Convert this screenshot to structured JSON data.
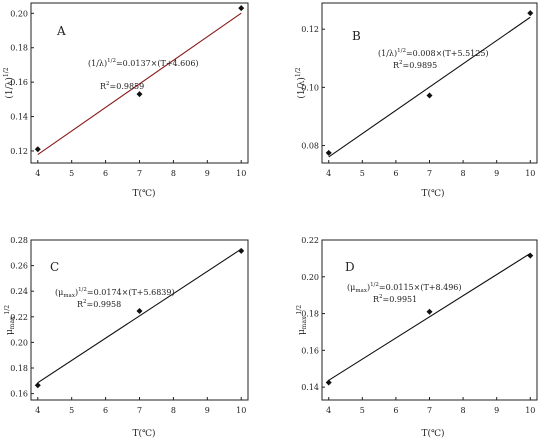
{
  "chart_data": [
    {
      "type": "scatter",
      "panel_label": "A",
      "x": [
        4,
        7,
        10
      ],
      "y": [
        0.121,
        0.153,
        0.203
      ],
      "xlim": [
        3.8,
        10.2
      ],
      "ylim": [
        0.113,
        0.206
      ],
      "xticks": [
        4,
        5,
        6,
        7,
        8,
        9,
        10
      ],
      "yticks": [
        0.12,
        0.14,
        0.16,
        0.18,
        0.2
      ],
      "xtick_labels": [
        "4",
        "5",
        "6",
        "7",
        "8",
        "9",
        "10"
      ],
      "ytick_labels": [
        "0.12",
        "0.14",
        "0.16",
        "0.18",
        "0.20"
      ],
      "xlabel": "T(℃)",
      "ylabel": "(1/λ)1/2",
      "fit": {
        "slope": 0.0137,
        "intercept": 4.606,
        "color": "#8b1a1a"
      },
      "equation": "(1/λ)1/2=0.0137×(T+4.606)",
      "equation_base": "(1/λ)",
      "equation_sup": "1/2",
      "equation_rest": "=0.0137×(T+4.606)",
      "r2_text": "R2=0.9859",
      "r2_base": "R",
      "r2_sup": "2",
      "r2_rest": "=0.9859"
    },
    {
      "type": "scatter",
      "panel_label": "B",
      "x": [
        4,
        7,
        10
      ],
      "y": [
        0.0775,
        0.0972,
        0.1255
      ],
      "xlim": [
        3.8,
        10.2
      ],
      "ylim": [
        0.074,
        0.129
      ],
      "xticks": [
        4,
        5,
        6,
        7,
        8,
        9,
        10
      ],
      "yticks": [
        0.08,
        0.1,
        0.12
      ],
      "xtick_labels": [
        "4",
        "5",
        "6",
        "7",
        "8",
        "9",
        "10"
      ],
      "ytick_labels": [
        "0.08",
        "0.10",
        "0.12"
      ],
      "xlabel": "T(℃)",
      "ylabel": "(1/λ)1/2",
      "fit": {
        "slope": 0.008,
        "intercept": 5.5125,
        "color": "#111111"
      },
      "equation": "(1/λ)1/2=0.008×(T+5.5125)",
      "equation_base": "(1/λ)",
      "equation_sup": "1/2",
      "equation_rest": "=0.008×(T+5.5125)",
      "r2_text": "R2=0.9895",
      "r2_base": "R",
      "r2_sup": "2",
      "r2_rest": "=0.9895"
    },
    {
      "type": "scatter",
      "panel_label": "C",
      "x": [
        4,
        7,
        10
      ],
      "y": [
        0.1665,
        0.2245,
        0.2715
      ],
      "xlim": [
        3.8,
        10.2
      ],
      "ylim": [
        0.155,
        0.28
      ],
      "xticks": [
        4,
        5,
        6,
        7,
        8,
        9,
        10
      ],
      "yticks": [
        0.16,
        0.18,
        0.2,
        0.22,
        0.24,
        0.26,
        0.28
      ],
      "xtick_labels": [
        "4",
        "5",
        "6",
        "7",
        "8",
        "9",
        "10"
      ],
      "ytick_labels": [
        "0.16",
        "0.18",
        "0.20",
        "0.22",
        "0.24",
        "0.26",
        "0.28"
      ],
      "xlabel": "T(℃)",
      "ylabel": "μmax1/2",
      "fit": {
        "slope": 0.0174,
        "intercept": 5.6839,
        "color": "#111111"
      },
      "equation": "(μmax)1/2=0.0174×(T+5.6839)",
      "equation_base": "(μmax)",
      "equation_sup": "1/2",
      "equation_rest": "=0.0174×(T+5.6839)",
      "r2_text": "R2=0.9958",
      "r2_base": "R",
      "r2_sup": "2",
      "r2_rest": "=0.9958"
    },
    {
      "type": "scatter",
      "panel_label": "D",
      "x": [
        4,
        7,
        10
      ],
      "y": [
        0.1425,
        0.181,
        0.2115
      ],
      "xlim": [
        3.8,
        10.2
      ],
      "ylim": [
        0.133,
        0.22
      ],
      "xticks": [
        4,
        5,
        6,
        7,
        8,
        9,
        10
      ],
      "yticks": [
        0.14,
        0.16,
        0.18,
        0.2,
        0.22
      ],
      "xtick_labels": [
        "4",
        "5",
        "6",
        "7",
        "8",
        "9",
        "10"
      ],
      "ytick_labels": [
        "0.14",
        "0.16",
        "0.18",
        "0.20",
        "0.22"
      ],
      "xlabel": "T(℃)",
      "ylabel": "μmax1/2",
      "fit": {
        "slope": 0.0115,
        "intercept": 8.496,
        "color": "#111111"
      },
      "equation": "(μmax)1/2=0.0115×(T+8.496)",
      "equation_base": "(μmax)",
      "equation_sup": "1/2",
      "equation_rest": "=0.0115×(T+8.496)",
      "r2_text": "R2=0.9951",
      "r2_base": "R",
      "r2_sup": "2",
      "r2_rest": "=0.9951"
    }
  ]
}
